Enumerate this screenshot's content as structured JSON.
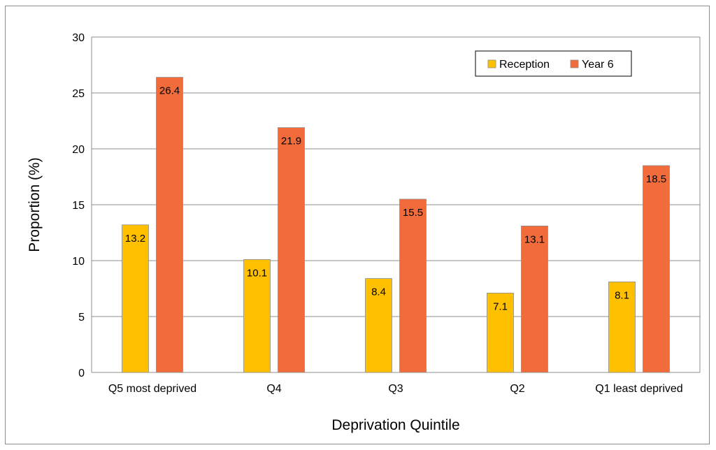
{
  "chart_data": {
    "type": "bar",
    "categories": [
      "Q5 most deprived",
      "Q4",
      "Q3",
      "Q2",
      "Q1 least deprived"
    ],
    "series": [
      {
        "name": "Reception",
        "values": [
          13.2,
          10.1,
          8.4,
          7.1,
          8.1
        ],
        "color": "#FFC000"
      },
      {
        "name": "Year 6",
        "values": [
          26.4,
          21.9,
          15.5,
          13.1,
          18.5
        ],
        "color": "#F26B3A"
      }
    ],
    "xlabel": "Deprivation Quintile",
    "ylabel": "Proportion (%)",
    "ylim": [
      0,
      30
    ],
    "yticks": [
      0,
      5,
      10,
      15,
      20,
      25,
      30
    ],
    "grid": true,
    "legend_position": "top-right"
  }
}
